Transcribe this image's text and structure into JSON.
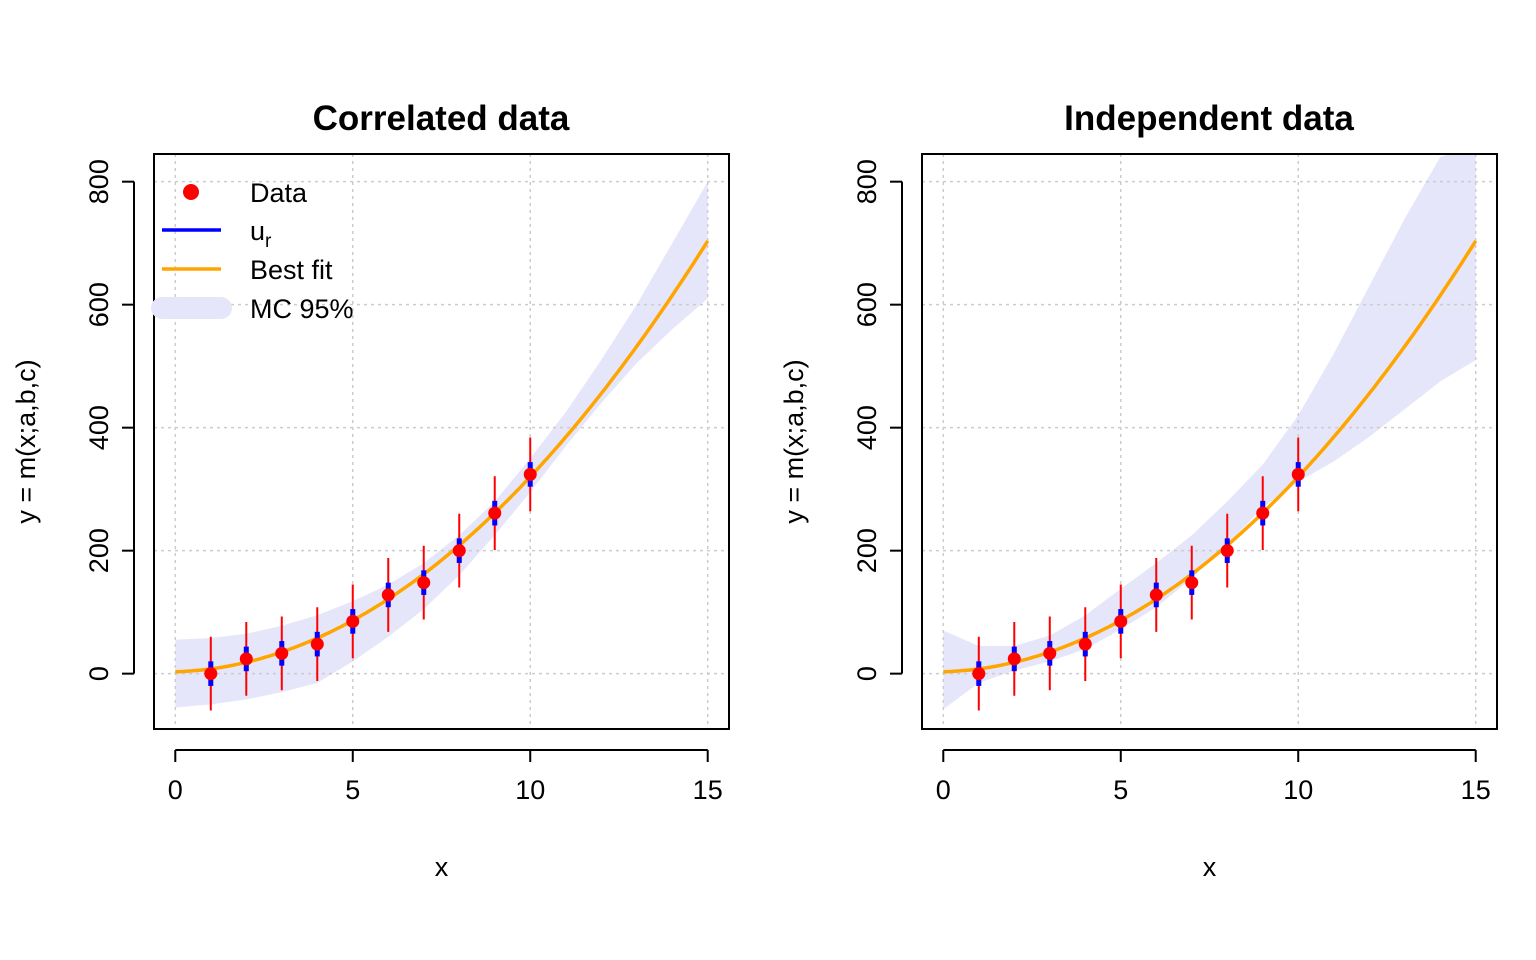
{
  "chart_data": [
    {
      "type": "scatter",
      "title": "Correlated data",
      "xlabel": "x",
      "ylabel": "y = m(x;a,b,c)",
      "xlim": [
        -0.6,
        15.6
      ],
      "ylim": [
        -90,
        845
      ],
      "xticks": [
        0,
        5,
        10,
        15
      ],
      "yticks": [
        0,
        200,
        400,
        600,
        800
      ],
      "grid": true,
      "legend": {
        "placement": "top-left",
        "entries": [
          {
            "label": "Data",
            "symbol": "point",
            "color": "#ff0000"
          },
          {
            "label": "u",
            "subscript": "r",
            "symbol": "line",
            "color": "#0000ff"
          },
          {
            "label": "Best fit",
            "symbol": "line",
            "color": "#ffa500"
          },
          {
            "label": "MC 95%",
            "symbol": "band",
            "color": "#e6e6fa"
          }
        ]
      },
      "series": [
        {
          "name": "Data",
          "x": [
            1,
            2,
            3,
            4,
            5,
            6,
            7,
            8,
            9,
            10
          ],
          "y": [
            0,
            24,
            33,
            48,
            85,
            128,
            148,
            200,
            261,
            324
          ],
          "error_outer": [
            60,
            60,
            60,
            60,
            60,
            60,
            60,
            60,
            60,
            60
          ],
          "error_inner": [
            20,
            20,
            20,
            20,
            20,
            20,
            20,
            20,
            20,
            20
          ]
        },
        {
          "name": "Best fit",
          "fit": {
            "a": 3,
            "b": 1.7,
            "c": 3.05
          },
          "x_range": [
            0,
            15
          ]
        },
        {
          "name": "MC 95%",
          "x": [
            0,
            1,
            2,
            3,
            4,
            5,
            6,
            7,
            8,
            9,
            10,
            11,
            12,
            13,
            14,
            15
          ],
          "lower": [
            -55,
            -50,
            -42,
            -30,
            -15,
            20,
            60,
            105,
            160,
            225,
            295,
            370,
            440,
            505,
            560,
            610
          ],
          "upper": [
            55,
            58,
            65,
            78,
            95,
            118,
            145,
            180,
            225,
            280,
            350,
            425,
            510,
            600,
            700,
            800
          ]
        }
      ]
    },
    {
      "type": "scatter",
      "title": "Independent data",
      "xlabel": "x",
      "ylabel": "y = m(x;a,b,c)",
      "xlim": [
        -0.6,
        15.6
      ],
      "ylim": [
        -90,
        845
      ],
      "xticks": [
        0,
        5,
        10,
        15
      ],
      "yticks": [
        0,
        200,
        400,
        600,
        800
      ],
      "grid": true,
      "series": [
        {
          "name": "Data",
          "x": [
            1,
            2,
            3,
            4,
            5,
            6,
            7,
            8,
            9,
            10
          ],
          "y": [
            0,
            24,
            33,
            48,
            85,
            128,
            148,
            200,
            261,
            324
          ],
          "error_outer": [
            60,
            60,
            60,
            60,
            60,
            60,
            60,
            60,
            60,
            60
          ],
          "error_inner": [
            20,
            20,
            20,
            20,
            20,
            20,
            20,
            20,
            20,
            20
          ]
        },
        {
          "name": "Best fit",
          "fit": {
            "a": 3,
            "b": 1.7,
            "c": 3.05
          },
          "x_range": [
            0,
            15
          ]
        },
        {
          "name": "MC 95%",
          "x": [
            0,
            1,
            2,
            3,
            4,
            5,
            6,
            7,
            8,
            9,
            10,
            11,
            12,
            13,
            14,
            15
          ],
          "lower": [
            -58,
            -15,
            5,
            20,
            40,
            72,
            108,
            155,
            210,
            270,
            312,
            345,
            385,
            430,
            475,
            510
          ],
          "upper": [
            70,
            45,
            45,
            62,
            95,
            138,
            180,
            225,
            280,
            340,
            420,
            520,
            630,
            740,
            840,
            860
          ]
        }
      ]
    }
  ],
  "colors": {
    "data_point": "#ff0000",
    "error_bar": "#ff0000",
    "inner_bar": "#0000ff",
    "best_fit": "#ffa500",
    "band": "#e6e6fa",
    "grid": "#cccccc"
  }
}
